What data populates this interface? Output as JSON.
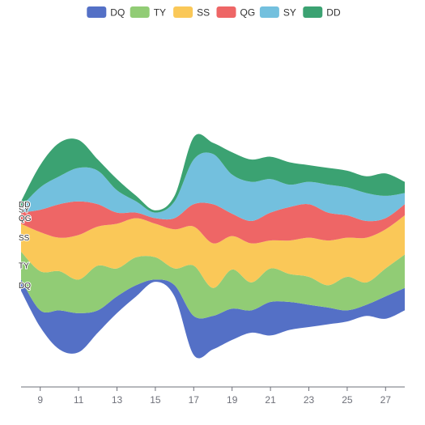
{
  "chart_data": {
    "type": "area",
    "subtype": "themeRiver",
    "x": [
      8,
      9,
      10,
      11,
      12,
      13,
      14,
      15,
      16,
      17,
      18,
      19,
      20,
      21,
      22,
      23,
      24,
      25,
      26,
      27,
      28
    ],
    "xlim": [
      8,
      28
    ],
    "x_ticks": [
      "9",
      "11",
      "13",
      "15",
      "17",
      "19",
      "21",
      "23",
      "25",
      "27"
    ],
    "legend_position": "top-center",
    "series": [
      {
        "name": "DQ",
        "color": "#5470c6",
        "values": [
          10,
          15,
          35,
          35,
          20,
          15,
          10,
          2,
          10,
          35,
          30,
          28,
          20,
          30,
          25,
          20,
          15,
          10,
          10,
          20,
          20
        ]
      },
      {
        "name": "TY",
        "color": "#91cc75",
        "values": [
          25,
          35,
          35,
          30,
          40,
          25,
          25,
          20,
          15,
          45,
          25,
          35,
          25,
          30,
          25,
          25,
          20,
          30,
          20,
          25,
          30
        ]
      },
      {
        "name": "SS",
        "color": "#fac858",
        "values": [
          25,
          35,
          30,
          40,
          35,
          40,
          35,
          30,
          35,
          35,
          40,
          30,
          35,
          25,
          30,
          35,
          40,
          35,
          40,
          35,
          35
        ]
      },
      {
        "name": "QG",
        "color": "#ee6666",
        "values": [
          10,
          20,
          30,
          30,
          20,
          10,
          5,
          5,
          10,
          20,
          35,
          20,
          20,
          25,
          30,
          30,
          25,
          20,
          15,
          10,
          10
        ]
      },
      {
        "name": "SY",
        "color": "#73c0de",
        "values": [
          5,
          20,
          25,
          30,
          30,
          20,
          10,
          5,
          15,
          40,
          45,
          35,
          35,
          30,
          20,
          20,
          25,
          25,
          25,
          20,
          10
        ]
      },
      {
        "name": "DD",
        "color": "#3ba272",
        "values": [
          5,
          20,
          30,
          25,
          10,
          10,
          5,
          2,
          5,
          20,
          10,
          20,
          20,
          20,
          20,
          15,
          15,
          15,
          15,
          20,
          10
        ]
      }
    ]
  }
}
